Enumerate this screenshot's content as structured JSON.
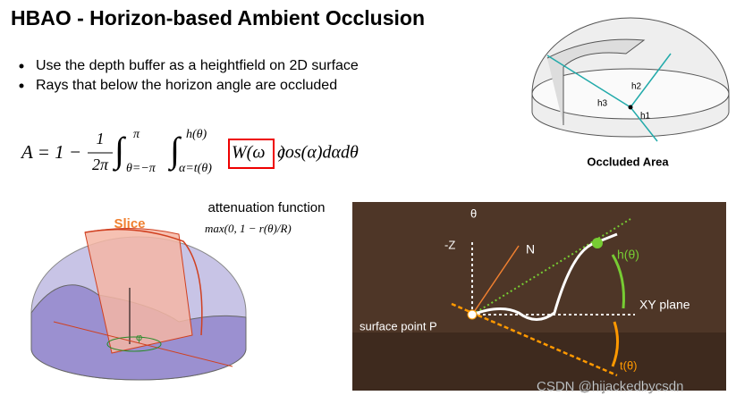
{
  "header": {
    "title": "HBAO - Horizon-based Ambient Occlusion"
  },
  "bullets": [
    "Use the depth buffer as a heightfield on 2D surface",
    "Rays that below the horizon angle are occluded"
  ],
  "formula": {
    "lhs": "A = 1 −",
    "frac_num": "1",
    "frac_den": "2π",
    "integral": "∫",
    "outer_upper": "π",
    "outer_lower": "θ=−π",
    "inner_upper": "h(θ)",
    "inner_lower": "α=t(θ)",
    "weight": "W(ω⃗)",
    "integrand": "cos(α)dαdθ"
  },
  "hemisphere": {
    "labels": [
      "h2",
      "h3",
      "h1"
    ],
    "caption": "Occluded Area"
  },
  "attenuation": {
    "label": "attenuation function",
    "formula": "max(0, 1 − r(θ)/R)"
  },
  "slice": {
    "title": "Slice",
    "angle": "φ"
  },
  "horizon": {
    "theta": "θ",
    "z": "-Z",
    "normal": "N",
    "h": "h(θ)",
    "plane": "XY plane",
    "point": "surface point P",
    "t": "t(θ)"
  },
  "watermark": "CSDN @hijackedbycsdn"
}
